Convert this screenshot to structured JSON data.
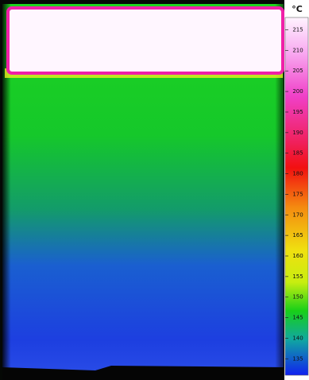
{
  "colorbar": {
    "unit": "°C",
    "lim": [
      131,
      218
    ],
    "ticks": [
      135,
      140,
      145,
      150,
      155,
      160,
      165,
      170,
      175,
      180,
      185,
      190,
      195,
      200,
      205,
      210,
      215
    ]
  }
}
